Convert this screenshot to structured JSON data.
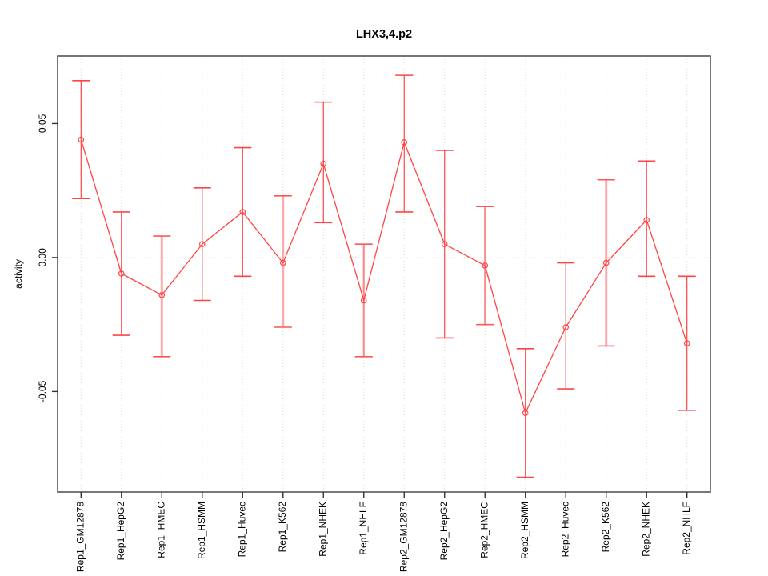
{
  "chart_data": {
    "type": "line",
    "title": "LHX3,4.p2",
    "ylabel": "activity",
    "xlabel": "",
    "legend": "none",
    "grid": "dotted vertical gridline at each category; dotted horizontal line at y=0",
    "categories": [
      "Rep1_GM12878",
      "Rep1_HepG2",
      "Rep1_HMEC",
      "Rep1_HSMM",
      "Rep1_Huvec",
      "Rep1_K562",
      "Rep1_NHEK",
      "Rep1_NHLF",
      "Rep2_GM12878",
      "Rep2_HepG2",
      "Rep2_HMEC",
      "Rep2_HSMM",
      "Rep2_Huvec",
      "Rep2_K562",
      "Rep2_NHEK",
      "Rep2_NHLF"
    ],
    "series": [
      {
        "name": "activity",
        "values": [
          0.044,
          -0.006,
          -0.014,
          0.005,
          0.017,
          -0.002,
          0.035,
          -0.016,
          0.043,
          0.005,
          -0.003,
          -0.058,
          -0.026,
          -0.002,
          0.014,
          -0.032
        ],
        "upper": [
          0.066,
          0.017,
          0.008,
          0.026,
          0.041,
          0.023,
          0.058,
          0.005,
          0.068,
          0.04,
          0.019,
          -0.034,
          -0.002,
          0.029,
          0.036,
          -0.007
        ],
        "lower": [
          0.022,
          -0.029,
          -0.037,
          -0.016,
          -0.007,
          -0.026,
          0.013,
          -0.037,
          0.017,
          -0.03,
          -0.025,
          -0.082,
          -0.049,
          -0.033,
          -0.007,
          -0.057
        ]
      }
    ],
    "error_bar_color_class": [
      "default",
      "default",
      "light",
      "default",
      "default",
      "light",
      "default",
      "medium",
      "default",
      "default",
      "medium",
      "default",
      "default",
      "light",
      "default",
      "default"
    ],
    "y_ticks": [
      0.05,
      0.0,
      -0.05
    ],
    "y_tick_labels": [
      "0.05",
      "0.00",
      "-0.05"
    ],
    "ylim": [
      -0.0875,
      0.0752
    ],
    "marker": "open-circle",
    "colors": {
      "line": "#FF4444",
      "point_stroke": "#FF4444",
      "error_bar_default": "#FF4444",
      "error_bar_medium": "#FF8A8A",
      "error_bar_light": "#FFABAB",
      "error_bar_cap_accent": "#FF5555",
      "gridline": "#DBDBDB",
      "zero_line": "#DBDBDB",
      "axis_border": "#555555",
      "tick": "#333333",
      "text": "#000000"
    }
  }
}
